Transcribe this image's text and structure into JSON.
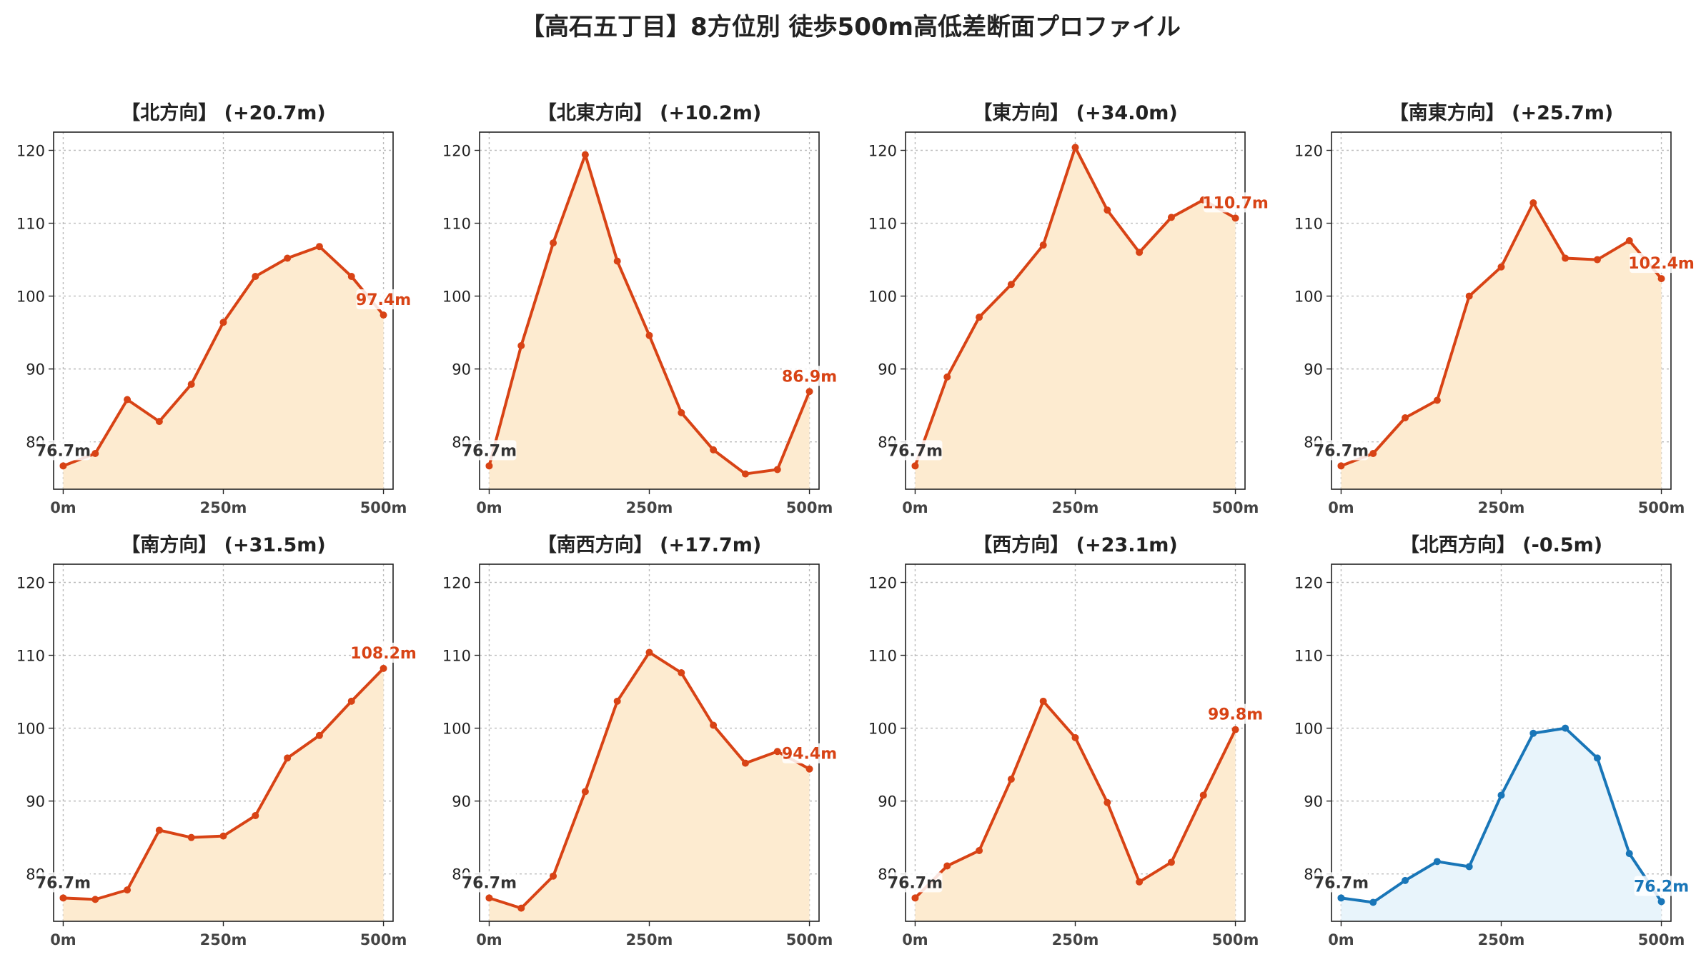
{
  "figure": {
    "title": "【高石五丁目】8方位別 徒歩500m高低差断面プロファイル"
  },
  "colors": {
    "up_line": "#d84315",
    "up_fill": "#fdebd0",
    "down_line": "#1976b8",
    "down_fill": "#e8f4fb",
    "start_label": "#333333",
    "grid": "#bbbbbb"
  },
  "chart_data": [
    {
      "type": "area",
      "title": "【北方向】 (+20.7m)",
      "x": [
        0,
        50,
        100,
        150,
        200,
        250,
        300,
        350,
        400,
        450,
        500
      ],
      "series": [
        {
          "values": [
            76.7,
            78.4,
            85.8,
            82.8,
            87.9,
            96.4,
            102.7,
            105.2,
            106.8,
            102.7,
            97.4
          ]
        }
      ],
      "xticks": [
        "0m",
        "250m",
        "500m"
      ],
      "ytick_values": [
        80,
        90,
        100,
        110,
        120
      ],
      "yticks": [
        "80",
        "90",
        "100",
        "110",
        "120"
      ],
      "xlim": [
        -15,
        515
      ],
      "ylim": [
        73.5,
        122.5
      ],
      "start_label": "76.7m",
      "end_label": "97.4m",
      "trend": "up",
      "grid": true
    },
    {
      "type": "area",
      "title": "【北東方向】 (+10.2m)",
      "x": [
        0,
        50,
        100,
        150,
        200,
        250,
        300,
        350,
        400,
        450,
        500
      ],
      "series": [
        {
          "values": [
            76.7,
            93.2,
            107.3,
            119.4,
            104.8,
            94.6,
            84.0,
            78.9,
            75.6,
            76.2,
            86.9
          ]
        }
      ],
      "xticks": [
        "0m",
        "250m",
        "500m"
      ],
      "ytick_values": [
        80,
        90,
        100,
        110,
        120
      ],
      "yticks": [
        "80",
        "90",
        "100",
        "110",
        "120"
      ],
      "xlim": [
        -15,
        515
      ],
      "ylim": [
        73.5,
        122.5
      ],
      "start_label": "76.7m",
      "end_label": "86.9m",
      "trend": "up",
      "grid": true
    },
    {
      "type": "area",
      "title": "【東方向】 (+34.0m)",
      "x": [
        0,
        50,
        100,
        150,
        200,
        250,
        300,
        350,
        400,
        450,
        500
      ],
      "series": [
        {
          "values": [
            76.7,
            88.9,
            97.1,
            101.6,
            107.0,
            120.4,
            111.8,
            106.0,
            110.8,
            113.2,
            110.7
          ]
        }
      ],
      "xticks": [
        "0m",
        "250m",
        "500m"
      ],
      "ytick_values": [
        80,
        90,
        100,
        110,
        120
      ],
      "yticks": [
        "80",
        "90",
        "100",
        "110",
        "120"
      ],
      "xlim": [
        -15,
        515
      ],
      "ylim": [
        73.5,
        122.5
      ],
      "start_label": "76.7m",
      "end_label": "110.7m",
      "trend": "up",
      "grid": true
    },
    {
      "type": "area",
      "title": "【南東方向】 (+25.7m)",
      "x": [
        0,
        50,
        100,
        150,
        200,
        250,
        300,
        350,
        400,
        450,
        500
      ],
      "series": [
        {
          "values": [
            76.7,
            78.4,
            83.3,
            85.7,
            100.0,
            104.0,
            112.8,
            105.2,
            105.0,
            107.6,
            102.4
          ]
        }
      ],
      "xticks": [
        "0m",
        "250m",
        "500m"
      ],
      "ytick_values": [
        80,
        90,
        100,
        110,
        120
      ],
      "yticks": [
        "80",
        "90",
        "100",
        "110",
        "120"
      ],
      "xlim": [
        -15,
        515
      ],
      "ylim": [
        73.5,
        122.5
      ],
      "start_label": "76.7m",
      "end_label": "102.4m",
      "trend": "up",
      "grid": true
    },
    {
      "type": "area",
      "title": "【南方向】 (+31.5m)",
      "x": [
        0,
        50,
        100,
        150,
        200,
        250,
        300,
        350,
        400,
        450,
        500
      ],
      "series": [
        {
          "values": [
            76.7,
            76.5,
            77.8,
            86.0,
            85.0,
            85.2,
            88.0,
            95.9,
            99.0,
            103.7,
            108.2
          ]
        }
      ],
      "xticks": [
        "0m",
        "250m",
        "500m"
      ],
      "ytick_values": [
        80,
        90,
        100,
        110,
        120
      ],
      "yticks": [
        "80",
        "90",
        "100",
        "110",
        "120"
      ],
      "xlim": [
        -15,
        515
      ],
      "ylim": [
        73.5,
        122.5
      ],
      "start_label": "76.7m",
      "end_label": "108.2m",
      "trend": "up",
      "grid": true
    },
    {
      "type": "area",
      "title": "【南西方向】 (+17.7m)",
      "x": [
        0,
        50,
        100,
        150,
        200,
        250,
        300,
        350,
        400,
        450,
        500
      ],
      "series": [
        {
          "values": [
            76.7,
            75.3,
            79.7,
            91.3,
            103.7,
            110.4,
            107.6,
            100.4,
            95.2,
            96.8,
            94.4
          ]
        }
      ],
      "xticks": [
        "0m",
        "250m",
        "500m"
      ],
      "ytick_values": [
        80,
        90,
        100,
        110,
        120
      ],
      "yticks": [
        "80",
        "90",
        "100",
        "110",
        "120"
      ],
      "xlim": [
        -15,
        515
      ],
      "ylim": [
        73.5,
        122.5
      ],
      "start_label": "76.7m",
      "end_label": "94.4m",
      "trend": "up",
      "grid": true
    },
    {
      "type": "area",
      "title": "【西方向】 (+23.1m)",
      "x": [
        0,
        50,
        100,
        150,
        200,
        250,
        300,
        350,
        400,
        450,
        500
      ],
      "series": [
        {
          "values": [
            76.7,
            81.1,
            83.2,
            93.0,
            103.7,
            98.7,
            89.8,
            78.9,
            81.6,
            90.8,
            99.8
          ]
        }
      ],
      "xticks": [
        "0m",
        "250m",
        "500m"
      ],
      "ytick_values": [
        80,
        90,
        100,
        110,
        120
      ],
      "yticks": [
        "80",
        "90",
        "100",
        "110",
        "120"
      ],
      "xlim": [
        -15,
        515
      ],
      "ylim": [
        73.5,
        122.5
      ],
      "start_label": "76.7m",
      "end_label": "99.8m",
      "trend": "up",
      "grid": true
    },
    {
      "type": "area",
      "title": "【北西方向】 (-0.5m)",
      "x": [
        0,
        50,
        100,
        150,
        200,
        250,
        300,
        350,
        400,
        450,
        500
      ],
      "series": [
        {
          "values": [
            76.7,
            76.1,
            79.1,
            81.7,
            81.0,
            90.8,
            99.3,
            100.0,
            95.9,
            82.8,
            76.2
          ]
        }
      ],
      "xticks": [
        "0m",
        "250m",
        "500m"
      ],
      "ytick_values": [
        80,
        90,
        100,
        110,
        120
      ],
      "yticks": [
        "80",
        "90",
        "100",
        "110",
        "120"
      ],
      "xlim": [
        -15,
        515
      ],
      "ylim": [
        73.5,
        122.5
      ],
      "start_label": "76.7m",
      "end_label": "76.2m",
      "trend": "down",
      "grid": true
    }
  ]
}
